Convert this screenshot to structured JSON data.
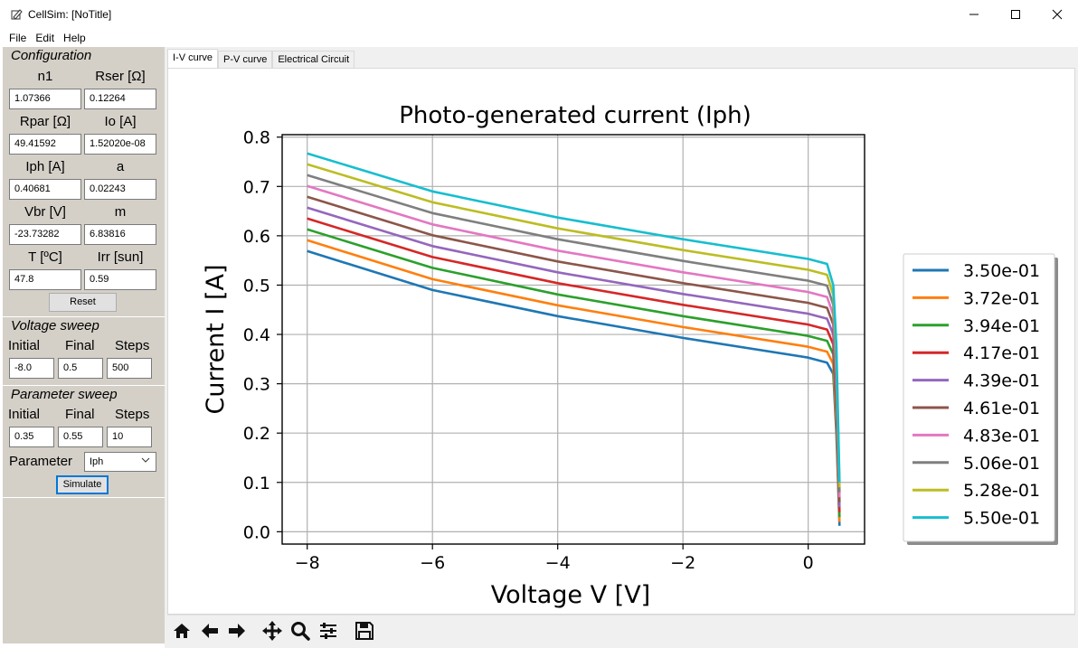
{
  "window": {
    "title": "CellSim: [NoTitle]",
    "icon": "pen-icon",
    "controls": [
      "minimize-icon",
      "maximize-icon",
      "close-icon"
    ]
  },
  "menu": [
    "File",
    "Edit",
    "Help"
  ],
  "configuration": {
    "title": "Configuration",
    "fields": [
      {
        "label": "n1",
        "value": "1.07366"
      },
      {
        "label": "Rser [Ω]",
        "value": "0.12264"
      },
      {
        "label": "Rpar [Ω]",
        "value": "49.41592"
      },
      {
        "label": "Io [A]",
        "value": "1.52020e-08"
      },
      {
        "label": "Iph [A]",
        "value": "0.40681"
      },
      {
        "label": "a",
        "value": "0.02243"
      },
      {
        "label": "Vbr [V]",
        "value": "-23.73282"
      },
      {
        "label": "m",
        "value": "6.83816"
      },
      {
        "label": "T [ºC]",
        "value": "47.8"
      },
      {
        "label": "Irr [sun]",
        "value": "0.59"
      }
    ],
    "reset_label": "Reset"
  },
  "voltage_sweep": {
    "title": "Voltage sweep",
    "initial_label": "Initial",
    "final_label": "Final",
    "steps_label": "Steps",
    "initial": "-8.0",
    "final": "0.5",
    "steps": "500"
  },
  "parameter_sweep": {
    "title": "Parameter sweep",
    "initial_label": "Initial",
    "final_label": "Final",
    "steps_label": "Steps",
    "initial": "0.35",
    "final": "0.55",
    "steps": "10",
    "parameter_label": "Parameter",
    "parameter_value": "Iph",
    "simulate_label": "Simulate"
  },
  "tabs": [
    "I-V curve",
    "P-V curve",
    "Electrical Circuit"
  ],
  "active_tab": 0,
  "toolbar_icons": [
    "home-icon",
    "back-arrow-icon",
    "forward-arrow-icon",
    "pan-icon",
    "zoom-icon",
    "configure-icon",
    "save-icon"
  ],
  "chart_data": {
    "type": "line",
    "title": "Photo-generated current (Iph)",
    "xlabel": "Voltage V [V]",
    "ylabel": "Current I [A]",
    "xlim": [
      -8.4,
      0.9
    ],
    "ylim": [
      -0.025,
      0.805
    ],
    "xticks": [
      -8,
      -6,
      -4,
      -2,
      0
    ],
    "xtick_labels": [
      "−8",
      "−6",
      "−4",
      "−2",
      "0"
    ],
    "yticks": [
      0.0,
      0.1,
      0.2,
      0.3,
      0.4,
      0.5,
      0.6,
      0.7,
      0.8
    ],
    "ytick_labels": [
      "0.0",
      "0.1",
      "0.2",
      "0.3",
      "0.4",
      "0.5",
      "0.6",
      "0.7",
      "0.8"
    ],
    "grid": true,
    "legend_position": "outside-right",
    "series": [
      {
        "name": "3.50e-01",
        "color": "#1f77b4",
        "points": [
          [
            -8,
            0.569
          ],
          [
            -6,
            0.49
          ],
          [
            -4,
            0.437
          ],
          [
            -2,
            0.393
          ],
          [
            0,
            0.353
          ],
          [
            0.3,
            0.343
          ],
          [
            0.4,
            0.32
          ],
          [
            0.45,
            0.2
          ],
          [
            0.5,
            0.012
          ]
        ]
      },
      {
        "name": "3.72e-01",
        "color": "#ff7f0e",
        "points": [
          [
            -8,
            0.591
          ],
          [
            -6,
            0.512
          ],
          [
            -4,
            0.459
          ],
          [
            -2,
            0.415
          ],
          [
            0,
            0.375
          ],
          [
            0.3,
            0.365
          ],
          [
            0.4,
            0.34
          ],
          [
            0.45,
            0.22
          ],
          [
            0.5,
            0.02
          ]
        ]
      },
      {
        "name": "3.94e-01",
        "color": "#2ca02c",
        "points": [
          [
            -8,
            0.613
          ],
          [
            -6,
            0.535
          ],
          [
            -4,
            0.481
          ],
          [
            -2,
            0.437
          ],
          [
            0,
            0.397
          ],
          [
            0.3,
            0.387
          ],
          [
            0.4,
            0.36
          ],
          [
            0.45,
            0.24
          ],
          [
            0.5,
            0.03
          ]
        ]
      },
      {
        "name": "4.17e-01",
        "color": "#d62728",
        "points": [
          [
            -8,
            0.635
          ],
          [
            -6,
            0.557
          ],
          [
            -4,
            0.504
          ],
          [
            -2,
            0.46
          ],
          [
            0,
            0.42
          ],
          [
            0.3,
            0.41
          ],
          [
            0.4,
            0.38
          ],
          [
            0.45,
            0.26
          ],
          [
            0.5,
            0.04
          ]
        ]
      },
      {
        "name": "4.39e-01",
        "color": "#9467bd",
        "points": [
          [
            -8,
            0.657
          ],
          [
            -6,
            0.579
          ],
          [
            -4,
            0.526
          ],
          [
            -2,
            0.482
          ],
          [
            0,
            0.442
          ],
          [
            0.3,
            0.432
          ],
          [
            0.4,
            0.4
          ],
          [
            0.45,
            0.28
          ],
          [
            0.5,
            0.05
          ]
        ]
      },
      {
        "name": "4.61e-01",
        "color": "#8c564b",
        "points": [
          [
            -8,
            0.679
          ],
          [
            -6,
            0.601
          ],
          [
            -4,
            0.548
          ],
          [
            -2,
            0.504
          ],
          [
            0,
            0.464
          ],
          [
            0.3,
            0.454
          ],
          [
            0.4,
            0.42
          ],
          [
            0.45,
            0.3
          ],
          [
            0.5,
            0.06
          ]
        ]
      },
      {
        "name": "4.83e-01",
        "color": "#e377c2",
        "points": [
          [
            -8,
            0.701
          ],
          [
            -6,
            0.623
          ],
          [
            -4,
            0.57
          ],
          [
            -2,
            0.526
          ],
          [
            0,
            0.486
          ],
          [
            0.3,
            0.476
          ],
          [
            0.4,
            0.44
          ],
          [
            0.45,
            0.32
          ],
          [
            0.5,
            0.07
          ]
        ]
      },
      {
        "name": "5.06e-01",
        "color": "#7f7f7f",
        "points": [
          [
            -8,
            0.723
          ],
          [
            -6,
            0.646
          ],
          [
            -4,
            0.593
          ],
          [
            -2,
            0.549
          ],
          [
            0,
            0.509
          ],
          [
            0.3,
            0.499
          ],
          [
            0.4,
            0.46
          ],
          [
            0.45,
            0.34
          ],
          [
            0.5,
            0.08
          ]
        ]
      },
      {
        "name": "5.28e-01",
        "color": "#bcbd22",
        "points": [
          [
            -8,
            0.745
          ],
          [
            -6,
            0.668
          ],
          [
            -4,
            0.615
          ],
          [
            -2,
            0.571
          ],
          [
            0,
            0.531
          ],
          [
            0.3,
            0.521
          ],
          [
            0.4,
            0.48
          ],
          [
            0.45,
            0.36
          ],
          [
            0.5,
            0.09
          ]
        ]
      },
      {
        "name": "5.50e-01",
        "color": "#17becf",
        "points": [
          [
            -8,
            0.767
          ],
          [
            -6,
            0.69
          ],
          [
            -4,
            0.637
          ],
          [
            -2,
            0.593
          ],
          [
            0,
            0.553
          ],
          [
            0.3,
            0.543
          ],
          [
            0.4,
            0.5
          ],
          [
            0.45,
            0.38
          ],
          [
            0.5,
            0.1
          ]
        ]
      }
    ]
  }
}
